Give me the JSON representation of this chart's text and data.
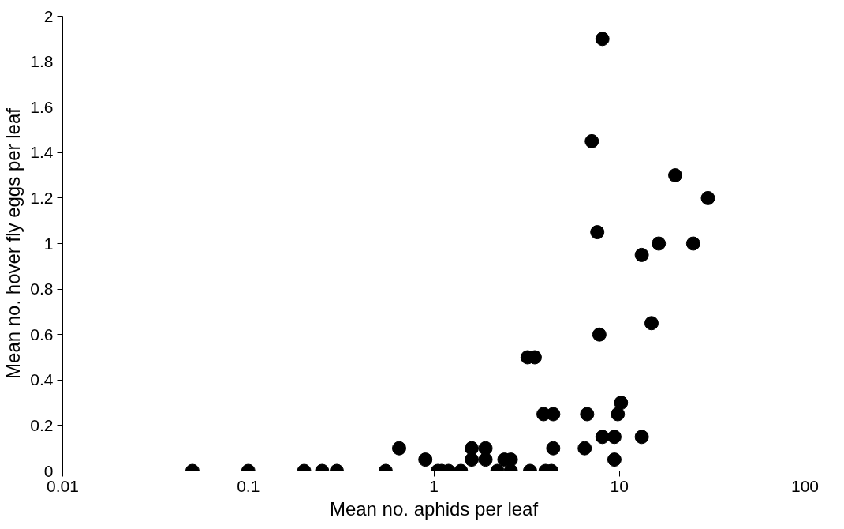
{
  "chart_data": {
    "type": "scatter",
    "xlabel": "Mean no. aphids per leaf",
    "ylabel": "Mean no. hover fly eggs per leaf",
    "log": "x",
    "xlim": [
      0.01,
      100
    ],
    "xticks": [
      0.01,
      0.1,
      1,
      10,
      100
    ],
    "ylim": [
      0,
      2
    ],
    "yticks": [
      0,
      0.2,
      0.4,
      0.6,
      0.8,
      1,
      1.2,
      1.4,
      1.6,
      1.8,
      2
    ],
    "grid": false,
    "marker": "circle",
    "series": [
      {
        "color": "#000000",
        "x": [
          0.05,
          0.1,
          0.2,
          0.25,
          0.3,
          0.55,
          1.05,
          1.1,
          1.2,
          1.4,
          2.2,
          2.6,
          3.3,
          4.0,
          4.3,
          0.9,
          1.6,
          1.9,
          2.4,
          2.6,
          9.4,
          0.65,
          1.6,
          1.9,
          4.4,
          6.5,
          8.1,
          9.4,
          13.2,
          3.9,
          4.4,
          6.7,
          9.8,
          10.2,
          3.2,
          3.5,
          8.1,
          7.1,
          20,
          30,
          7.6,
          16.3,
          13.2,
          25,
          14.9,
          7.8
        ],
        "values": [
          0,
          0,
          0,
          0,
          0,
          0,
          0,
          0,
          0,
          0,
          0,
          0,
          0,
          0,
          0,
          0.05,
          0.05,
          0.05,
          0.05,
          0.05,
          0.05,
          0.1,
          0.1,
          0.1,
          0.1,
          0.1,
          0.15,
          0.15,
          0.15,
          0.25,
          0.25,
          0.25,
          0.25,
          0.3,
          0.5,
          0.5,
          1.9,
          1.45,
          1.3,
          1.2,
          1.05,
          1.0,
          0.95,
          1.0,
          0.65,
          0.6
        ]
      }
    ]
  }
}
